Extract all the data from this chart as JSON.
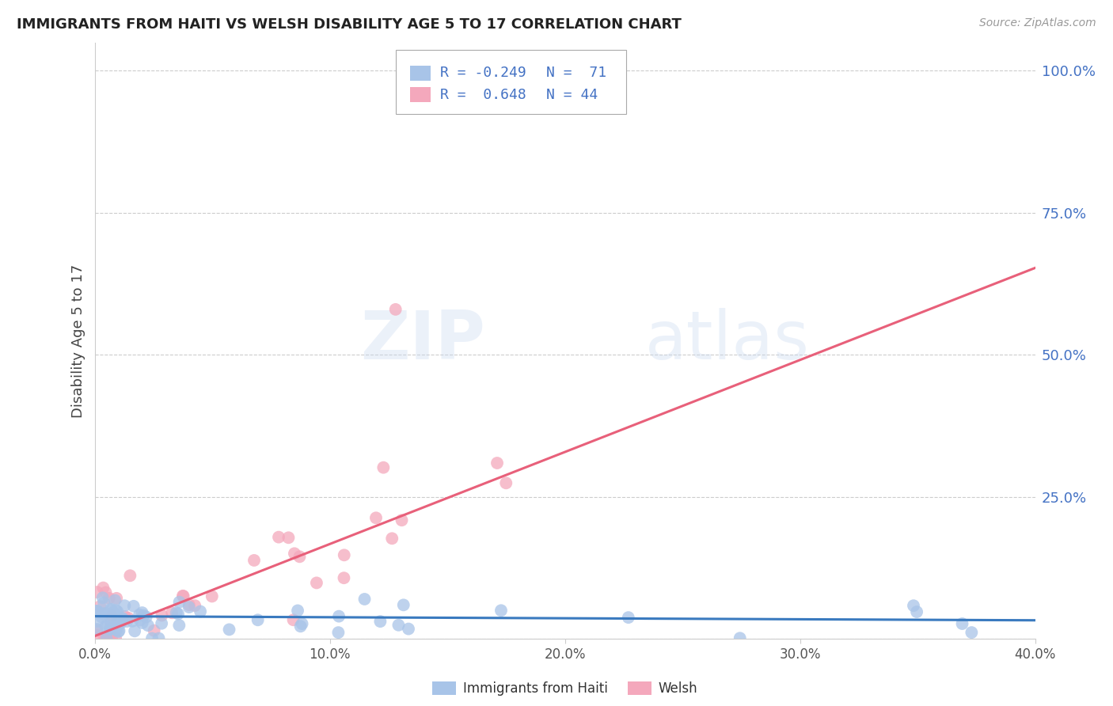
{
  "title": "IMMIGRANTS FROM HAITI VS WELSH DISABILITY AGE 5 TO 17 CORRELATION CHART",
  "source": "Source: ZipAtlas.com",
  "ylabel": "Disability Age 5 to 17",
  "xlim": [
    0.0,
    0.4
  ],
  "ylim": [
    0.0,
    1.05
  ],
  "xtick_vals": [
    0.0,
    0.1,
    0.2,
    0.3,
    0.4
  ],
  "xtick_labels": [
    "0.0%",
    "10.0%",
    "20.0%",
    "30.0%",
    "40.0%"
  ],
  "ytick_positions": [
    1.0,
    0.75,
    0.5,
    0.25
  ],
  "ytick_labels": [
    "100.0%",
    "75.0%",
    "50.0%",
    "25.0%"
  ],
  "haiti_color": "#a8c4e8",
  "welsh_color": "#f4a8bc",
  "haiti_line_color": "#3a7abf",
  "welsh_line_color": "#e8607a",
  "right_tick_color": "#4472c4",
  "legend_text_color": "#4472c4",
  "grid_color": "#cccccc",
  "title_color": "#222222",
  "source_color": "#999999",
  "legend_label1": "Immigrants from Haiti",
  "legend_label2": "Welsh",
  "haiti_R_text": "R = -0.249",
  "haiti_N_text": "N =  71",
  "welsh_R_text": "R =  0.648",
  "welsh_N_text": "N = 44",
  "watermark": "ZIPatlas",
  "haiti_line_slope": -0.018,
  "haiti_line_intercept": 0.04,
  "welsh_line_slope": 1.62,
  "welsh_line_intercept": 0.005
}
